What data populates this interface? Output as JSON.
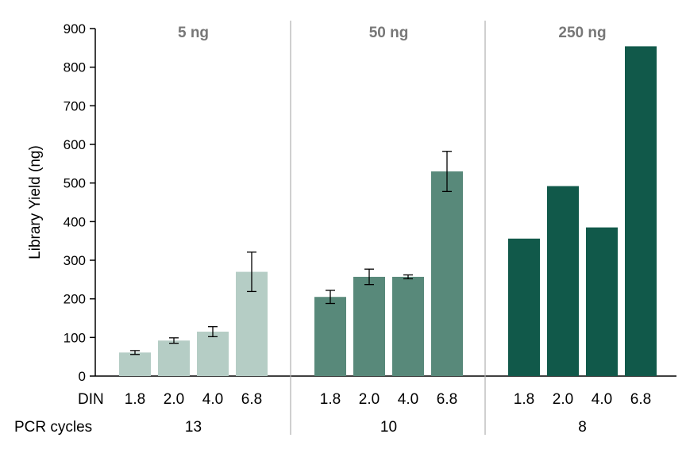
{
  "chart_data": {
    "type": "bar",
    "ylabel": "Library Yield (ng)",
    "ylim": [
      0,
      900
    ],
    "yticks": [
      "0",
      "100",
      "200",
      "300",
      "400",
      "500",
      "600",
      "700",
      "800",
      "900"
    ],
    "row_labels": {
      "din": "DIN",
      "pcr": "PCR cycles"
    },
    "grid": false,
    "groups": [
      {
        "name": "5 ng",
        "pcr_cycles": "13",
        "color": "#b5cdc5",
        "categories": [
          "1.8",
          "2.0",
          "4.0",
          "6.8"
        ],
        "values": [
          61,
          92,
          115,
          270
        ],
        "errors": [
          5,
          7,
          13,
          51
        ]
      },
      {
        "name": "50 ng",
        "pcr_cycles": "10",
        "color": "#58897a",
        "categories": [
          "1.8",
          "2.0",
          "4.0",
          "6.8"
        ],
        "values": [
          205,
          257,
          257,
          530
        ],
        "errors": [
          17,
          20,
          5,
          52
        ]
      },
      {
        "name": "250 ng",
        "pcr_cycles": "8",
        "color": "#11594a",
        "categories": [
          "1.8",
          "2.0",
          "4.0",
          "6.8"
        ],
        "values": [
          356,
          492,
          385,
          854
        ],
        "errors": [
          null,
          null,
          null,
          null
        ]
      }
    ]
  }
}
